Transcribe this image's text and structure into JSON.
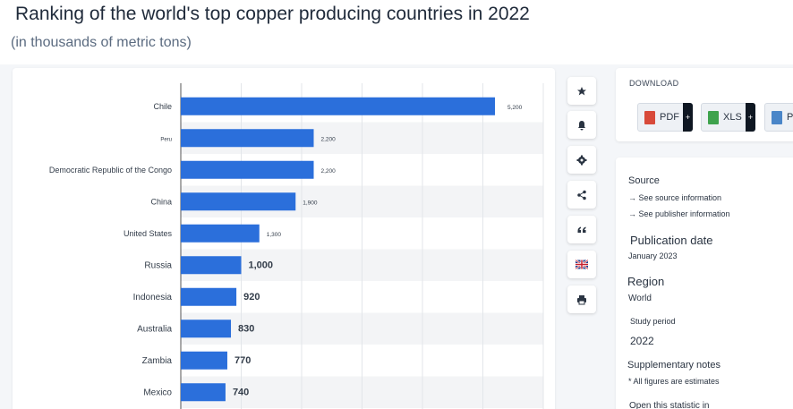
{
  "header": {
    "title": "Ranking of the world's top copper producing countries in 2022",
    "subtitle": "(in thousands of metric tons)"
  },
  "chart_data": {
    "type": "bar",
    "orientation": "horizontal",
    "categories": [
      "Chile",
      "Peru",
      "Democratic Republic of the Congo",
      "China",
      "United States",
      "Russia",
      "Indonesia",
      "Australia",
      "Zambia",
      "Mexico"
    ],
    "values": [
      5200,
      2200,
      2200,
      1900,
      1300,
      1000,
      920,
      830,
      770,
      740
    ],
    "value_labels": [
      "5,200",
      "2,200",
      "2,200",
      "1,900",
      "1,300",
      "1,000",
      "920",
      "830",
      "770",
      "740"
    ],
    "xlim": [
      0,
      6000
    ],
    "grid": true,
    "bar_color": "#2b6fdb"
  },
  "tools": {
    "items": [
      {
        "name": "favorite-button",
        "icon": "star-icon"
      },
      {
        "name": "notification-button",
        "icon": "bell-icon"
      },
      {
        "name": "settings-button",
        "icon": "gear-icon"
      },
      {
        "name": "share-button",
        "icon": "share-icon"
      },
      {
        "name": "cite-button",
        "icon": "quote-icon"
      },
      {
        "name": "language-button",
        "icon": "flag-icon"
      },
      {
        "name": "print-button",
        "icon": "printer-icon"
      }
    ]
  },
  "download": {
    "heading": "DOWNLOAD",
    "buttons": [
      {
        "label": "PDF",
        "plus": "+",
        "color": "#d84a3a"
      },
      {
        "label": "XLS",
        "plus": "+",
        "color": "#3fa34d"
      },
      {
        "label": "PI",
        "color": "#4a86c8"
      }
    ]
  },
  "info": {
    "source_heading": "Source",
    "source_link": "→ See source information",
    "publisher_link": "→ See publisher information",
    "publication_heading": "Publication date",
    "publication_value": "January 2023",
    "region_heading": "Region",
    "region_value": "World",
    "study_heading": "Study period",
    "study_value": "2022",
    "notes_heading": "Supplementary notes",
    "notes_value": "* All figures are estimates",
    "open_label": "Open this statistic in"
  }
}
